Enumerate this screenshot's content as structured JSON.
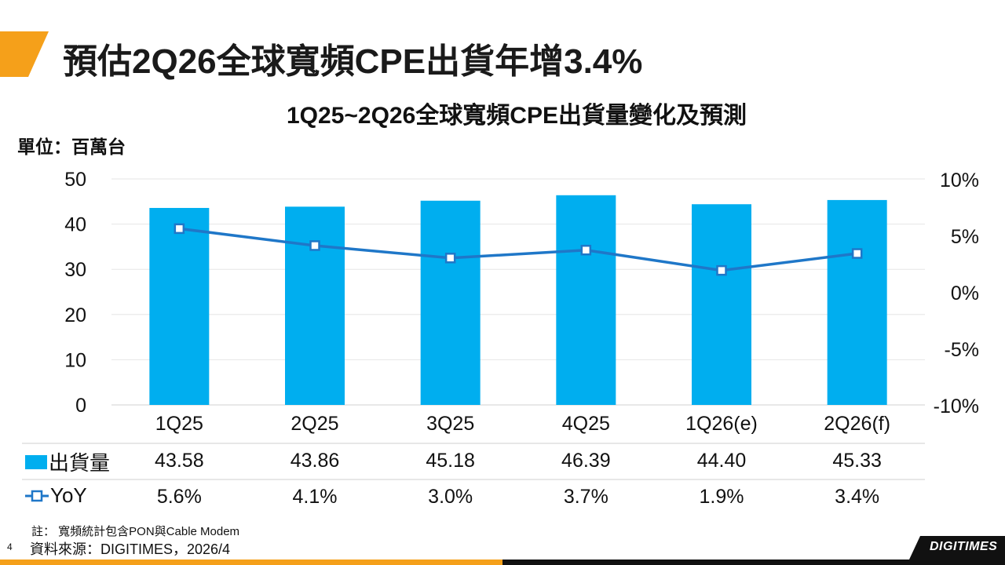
{
  "slide": {
    "title": "預估2Q26全球寬頻CPE出貨年增3.4%",
    "page_number": "4",
    "footnote": "註： 寬頻統計包含PON與Cable Modem",
    "source": "資料來源：DIGITIMES，2026/4",
    "logo": "DIGITIMES"
  },
  "colors": {
    "accent_orange": "#f5a01a",
    "bar_blue": "#00aeef",
    "line_blue": "#1f77c8"
  },
  "chart_data": {
    "type": "bar",
    "title": "1Q25~2Q26全球寬頻CPE出貨量變化及預測",
    "unit_label": "單位：百萬台",
    "categories": [
      "1Q25",
      "2Q25",
      "3Q25",
      "4Q25",
      "1Q26(e)",
      "2Q26(f)"
    ],
    "series": [
      {
        "name": "出貨量",
        "type": "bar",
        "axis": "left",
        "values": [
          43.58,
          43.86,
          45.18,
          46.39,
          44.4,
          45.33
        ],
        "labels": [
          "43.58",
          "43.86",
          "45.18",
          "46.39",
          "44.40",
          "45.33"
        ]
      },
      {
        "name": "YoY",
        "type": "line",
        "axis": "right",
        "values": [
          5.6,
          4.1,
          3.0,
          3.7,
          1.9,
          3.4
        ],
        "labels": [
          "5.6%",
          "4.1%",
          "3.0%",
          "3.7%",
          "1.9%",
          "3.4%"
        ]
      }
    ],
    "left_axis": {
      "ylim": [
        0,
        50
      ],
      "ticks": [
        0,
        10,
        20,
        30,
        40,
        50
      ],
      "tick_labels": [
        "0",
        "10",
        "20",
        "30",
        "40",
        "50"
      ]
    },
    "right_axis": {
      "ylim": [
        -10,
        10
      ],
      "ticks": [
        -10,
        -5,
        0,
        5,
        10
      ],
      "tick_labels": [
        "-10%",
        "-5%",
        "0%",
        "5%",
        "10%"
      ]
    },
    "grid": true,
    "data_table": true
  }
}
